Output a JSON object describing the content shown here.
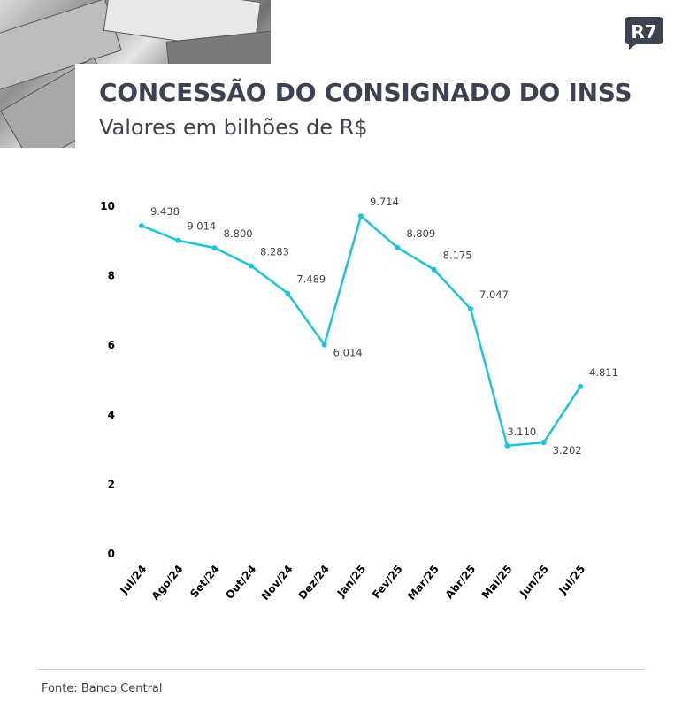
{
  "header": {
    "title": "CONCESSÃO DO CONSIGNADO DO INSS",
    "subtitle": "Valores em bilhões de R$",
    "logo_text": "R7"
  },
  "footer": {
    "source": "Fonte: Banco Central"
  },
  "colors": {
    "line": "#1ec3d9",
    "text": "#3c4250",
    "axis_text": "#000000"
  },
  "chart_data": {
    "type": "line",
    "title": "CONCESSÃO DO CONSIGNADO DO INSS",
    "subtitle": "Valores em bilhões de R$",
    "xlabel": "",
    "ylabel": "",
    "ylim": [
      0,
      10
    ],
    "yticks": [
      0,
      2,
      4,
      6,
      8,
      10
    ],
    "grid": false,
    "categories": [
      "Jul/24",
      "Ago/24",
      "Set/24",
      "Out/24",
      "Nov/24",
      "Dez/24",
      "Jan/25",
      "Fev/25",
      "Mar/25",
      "Abr/25",
      "Mai/25",
      "Jun/25",
      "Jul/25"
    ],
    "series": [
      {
        "values": [
          9.438,
          9.014,
          8.8,
          8.283,
          7.489,
          6.014,
          9.714,
          8.809,
          8.175,
          7.047,
          3.11,
          3.202,
          4.811
        ],
        "labels": [
          "9.438",
          "9.014",
          "8.800",
          "8.283",
          "7.489",
          "6.014",
          "9.714",
          "8.809",
          "8.175",
          "7.047",
          "3.110",
          "3.202",
          "4.811"
        ]
      }
    ]
  }
}
